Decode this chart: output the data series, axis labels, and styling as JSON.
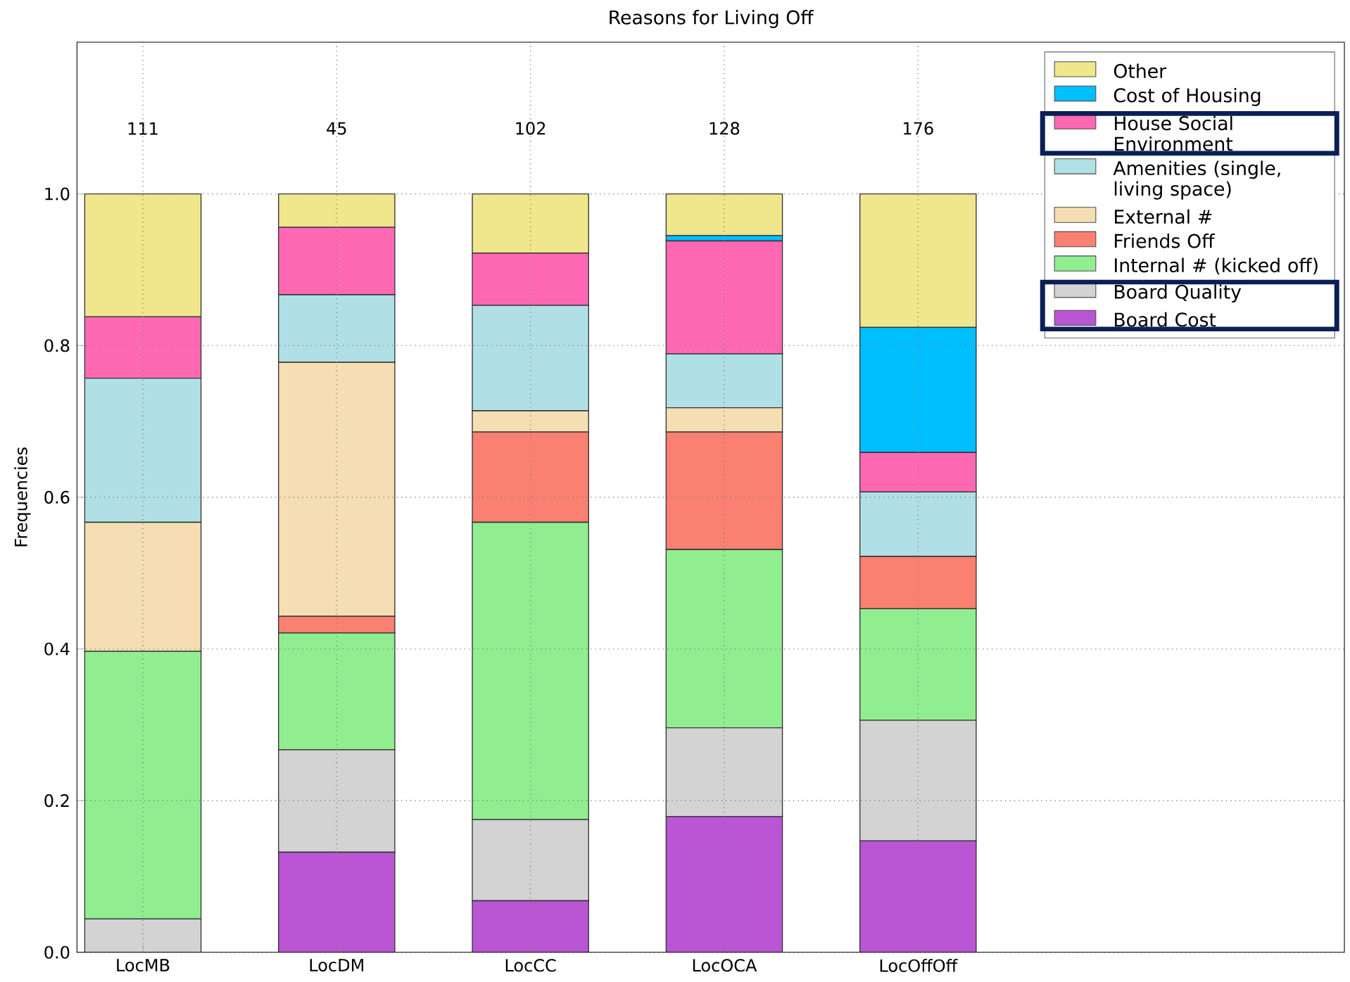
{
  "chart_data": {
    "type": "bar",
    "title": "Reasons for Living Off",
    "ylabel": "Frequencies",
    "categories": [
      "LocMB",
      "LocDM",
      "LocCC",
      "LocOCA",
      "LocOffOff"
    ],
    "stacked": true,
    "series": [
      {
        "name": "Board Cost",
        "color": "#ba55d3",
        "values": [
          0,
          0.132,
          0.068,
          0.179,
          0.147
        ]
      },
      {
        "name": "Board Quality",
        "color": "#d3d3d3",
        "values": [
          0.044,
          0.135,
          0.107,
          0.117,
          0.159
        ]
      },
      {
        "name": "Internal # (kicked off)",
        "color": "#90ee90",
        "values": [
          0.353,
          0.154,
          0.392,
          0.235,
          0.147
        ]
      },
      {
        "name": "Friends Off",
        "color": "#fa8072",
        "values": [
          0,
          0.022,
          0.119,
          0.155,
          0.069
        ]
      },
      {
        "name": "External #",
        "color": "#f5deb3",
        "values": [
          0.17,
          0.335,
          0.028,
          0.032,
          0
        ]
      },
      {
        "name": "Amenities (single, living space)",
        "color": "#b0e0e6",
        "values": [
          0.19,
          0.089,
          0.139,
          0.071,
          0.085
        ]
      },
      {
        "name": "House Social Environment",
        "color": "#ff69b4",
        "values": [
          0.081,
          0.089,
          0.069,
          0.149,
          0.052
        ]
      },
      {
        "name": "Cost of Housing",
        "color": "#00bfff",
        "values": [
          0,
          0,
          0,
          0.007,
          0.165
        ]
      },
      {
        "name": "Other",
        "color": "#f0e68c",
        "values": [
          0.162,
          0.044,
          0.078,
          0.055,
          0.176
        ]
      }
    ],
    "ylim": [
      0,
      1.2
    ],
    "yticks": [
      {
        "value": 0,
        "label": "0.0"
      },
      0.2,
      0.4,
      0.6,
      0.8,
      {
        "value": 1.0,
        "label": "1.0"
      }
    ],
    "grid": true,
    "legend": "top right",
    "annotations": [
      "111",
      "45",
      "102",
      "128",
      "176"
    ]
  }
}
